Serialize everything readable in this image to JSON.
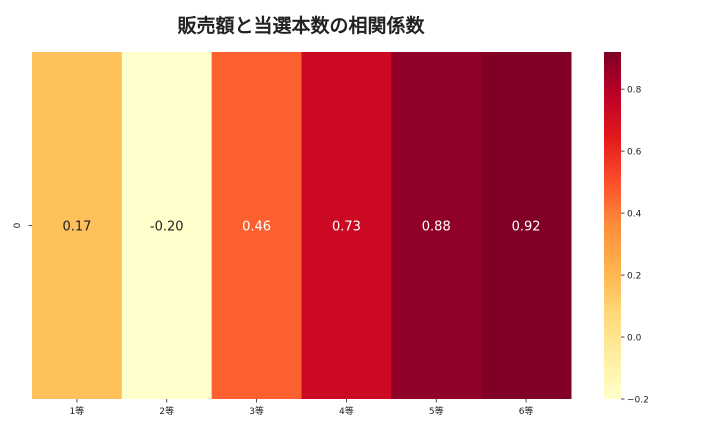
{
  "chart_data": {
    "type": "heatmap",
    "title": "販売額と当選本数の相関係数",
    "rows": [
      "0"
    ],
    "columns": [
      "1等",
      "2等",
      "3等",
      "4等",
      "5等",
      "6等"
    ],
    "values": [
      [
        0.17,
        -0.2,
        0.46,
        0.73,
        0.88,
        0.92
      ]
    ],
    "value_labels": [
      "0.17",
      "-0.20",
      "0.46",
      "0.73",
      "0.88",
      "0.92"
    ],
    "colormap": "YlOrRd",
    "colorbar": {
      "min": -0.2,
      "max": 0.92,
      "ticks": [
        -0.2,
        0.0,
        0.2,
        0.4,
        0.6,
        0.8
      ],
      "tick_labels": [
        "−0.2",
        "0.0",
        "0.2",
        "0.4",
        "0.6",
        "0.8"
      ]
    },
    "xlabel": "",
    "ylabel": "",
    "grid": false
  }
}
